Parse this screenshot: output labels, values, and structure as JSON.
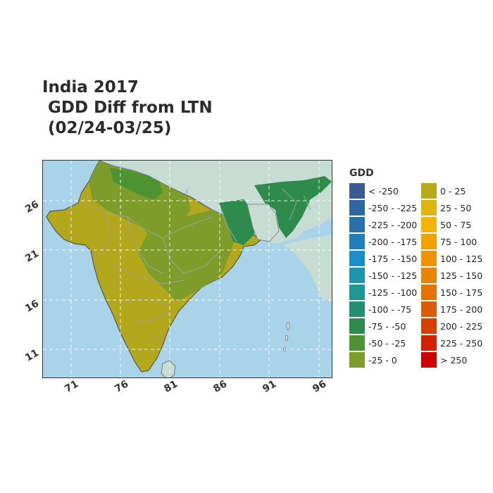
{
  "title": {
    "line1": "India 2017",
    "line2": " GDD Diff from LTN",
    "line3": " (02/24-03/25)"
  },
  "axes": {
    "lat_ticks": [
      "26",
      "21",
      "16",
      "11"
    ],
    "lon_ticks": [
      "71",
      "76",
      "81",
      "86",
      "91",
      "96"
    ]
  },
  "legend": {
    "title": "GDD",
    "column1": [
      {
        "label": "< -250",
        "color": "#3a5a94"
      },
      {
        "label": "-250 - -225",
        "color": "#2e66a0"
      },
      {
        "label": "-225 - -200",
        "color": "#2770ab"
      },
      {
        "label": "-200 - -175",
        "color": "#1f80bb"
      },
      {
        "label": "-175 - -150",
        "color": "#1690c8"
      },
      {
        "label": "-150 - -125",
        "color": "#1b95b0"
      },
      {
        "label": "-125 - -100",
        "color": "#1f9791"
      },
      {
        "label": "-100 - -75",
        "color": "#228f70"
      },
      {
        "label": "-75 - -50",
        "color": "#2e8b4e"
      },
      {
        "label": "-50 - -25",
        "color": "#4e9332"
      },
      {
        "label": "-25 - 0",
        "color": "#7e9c2a"
      }
    ],
    "column2": [
      {
        "label": "0 - 25",
        "color": "#b7aa1a"
      },
      {
        "label": "25 - 50",
        "color": "#e0b40e"
      },
      {
        "label": "50 - 75",
        "color": "#f5b400"
      },
      {
        "label": "75 - 100",
        "color": "#f2a100"
      },
      {
        "label": "100 - 125",
        "color": "#ee9200"
      },
      {
        "label": "125 - 150",
        "color": "#e88500"
      },
      {
        "label": "150 - 175",
        "color": "#e27300"
      },
      {
        "label": "175 - 200",
        "color": "#dc5a00"
      },
      {
        "label": "200 - 225",
        "color": "#d63f00"
      },
      {
        "label": "225 - 250",
        "color": "#d02200"
      },
      {
        "label": "> 250",
        "color": "#cc0000"
      }
    ]
  },
  "colors": {
    "ocean": "#a9d3e8",
    "land_outside": "#c9dfd6",
    "grid": "#ffffff",
    "boundary": "#9a9a9a",
    "coast": "#555555"
  }
}
